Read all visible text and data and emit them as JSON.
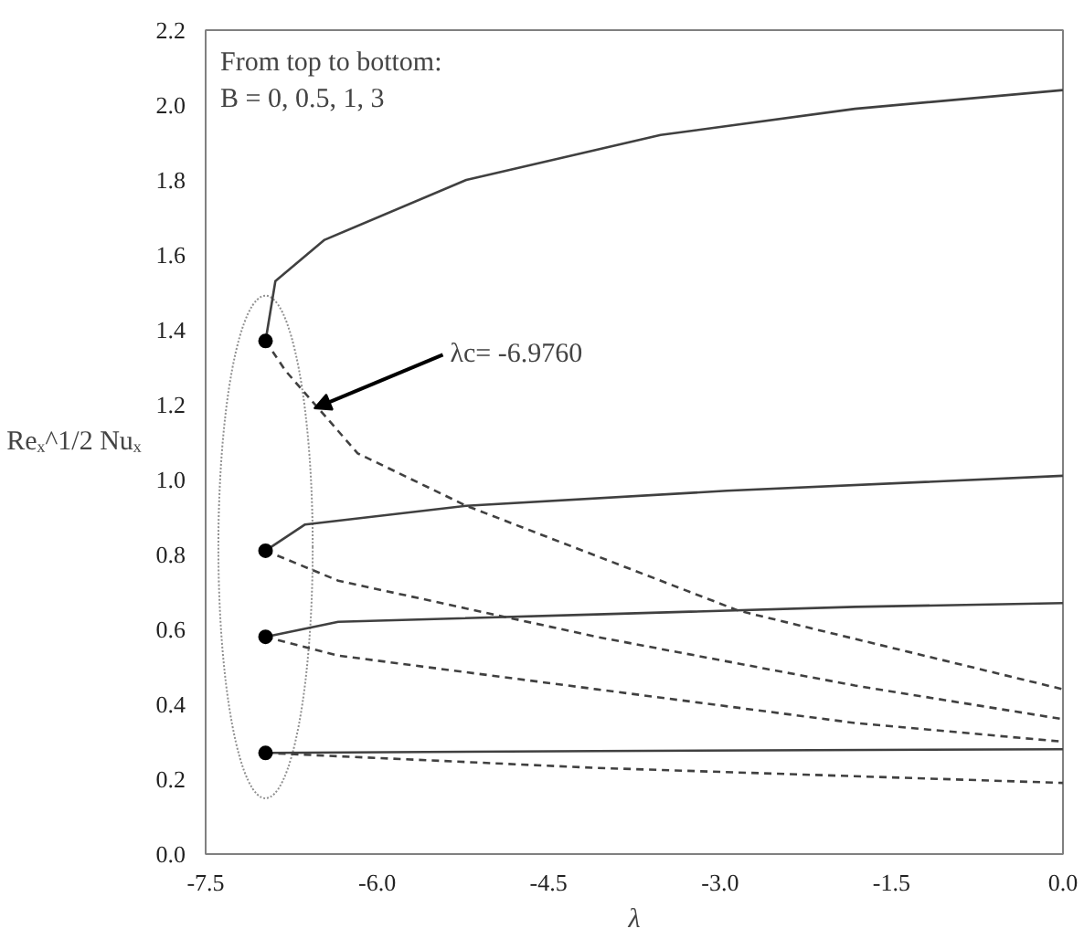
{
  "chart_data": {
    "type": "line",
    "xlabel": "λ",
    "ylabel": "Reₓ^1/2 Nuₓ",
    "annotations": [
      "From top to bottom:",
      "B = 0, 0.5, 1, 3",
      {
        "text": "λc= -6.9760",
        "x": -6.55,
        "y": 1.19
      }
    ],
    "xlim": [
      -7.5,
      0
    ],
    "xticks": [
      {
        "value": -7.5,
        "label": "-7.5"
      },
      {
        "value": -6,
        "label": "-6.0"
      },
      {
        "value": -4.5,
        "label": "-4.5"
      },
      {
        "value": -3,
        "label": "-3.0"
      },
      {
        "value": -1.5,
        "label": "-1.5"
      },
      {
        "value": 0,
        "label": "0.0"
      }
    ],
    "ylim": [
      0,
      2.2
    ],
    "yticks": [
      {
        "value": 0,
        "label": "0.0"
      },
      {
        "value": 0.2,
        "label": "0.2"
      },
      {
        "value": 0.4,
        "label": "0.4"
      },
      {
        "value": 0.6,
        "label": "0.6"
      },
      {
        "value": 0.8,
        "label": "0.8"
      },
      {
        "value": 1.0,
        "label": "1.0"
      },
      {
        "value": 1.2,
        "label": "1.2"
      },
      {
        "value": 1.4,
        "label": "1.4"
      },
      {
        "value": 1.6,
        "label": "1.6"
      },
      {
        "value": 1.8,
        "label": "1.8"
      },
      {
        "value": 2.0,
        "label": "2.0"
      },
      {
        "value": 2.2,
        "label": "2.2"
      }
    ],
    "grid": false,
    "marker": "none",
    "series": [
      {
        "line_style": "solid",
        "color": "#404040",
        "x": [
          -6.976,
          -6.89,
          -6.46,
          -5.22,
          -3.52,
          -1.82,
          0
        ],
        "values": [
          1.37,
          1.53,
          1.64,
          1.8,
          1.92,
          1.99,
          2.04
        ]
      },
      {
        "line_style": "dashed",
        "color": "#404040",
        "x": [
          -6.976,
          -6.8,
          -6.17,
          -5.22,
          -2.84,
          0
        ],
        "values": [
          1.37,
          1.29,
          1.07,
          0.93,
          0.65,
          0.44
        ]
      },
      {
        "line_style": "solid",
        "color": "#404040",
        "x": [
          -6.976,
          -6.63,
          -5.22,
          -2.94,
          0
        ],
        "values": [
          0.81,
          0.88,
          0.93,
          0.97,
          1.01
        ]
      },
      {
        "line_style": "dashed",
        "color": "#404040",
        "x": [
          -6.976,
          -6.34,
          -4.08,
          -1.82,
          0
        ],
        "values": [
          0.81,
          0.73,
          0.58,
          0.45,
          0.36
        ]
      },
      {
        "line_style": "solid",
        "color": "#404040",
        "x": [
          -6.976,
          -6.34,
          -4.08,
          -1.82,
          0
        ],
        "values": [
          0.58,
          0.62,
          0.64,
          0.66,
          0.67
        ]
      },
      {
        "line_style": "dashed",
        "color": "#404040",
        "x": [
          -6.976,
          -6.34,
          -4.08,
          -1.82,
          0
        ],
        "values": [
          0.58,
          0.53,
          0.44,
          0.35,
          0.3
        ]
      },
      {
        "line_style": "solid",
        "color": "#404040",
        "x": [
          -6.976,
          -4.08,
          0
        ],
        "values": [
          0.27,
          0.275,
          0.28
        ]
      },
      {
        "line_style": "dashed",
        "color": "#404040",
        "x": [
          -6.976,
          -4.08,
          0
        ],
        "values": [
          0.27,
          0.23,
          0.19
        ]
      },
      {
        "type": "scatter",
        "marker": "circle",
        "color": "#000000",
        "x": [
          -6.976,
          -6.976,
          -6.976,
          -6.976
        ],
        "values": [
          1.37,
          0.81,
          0.58,
          0.27
        ]
      }
    ]
  }
}
